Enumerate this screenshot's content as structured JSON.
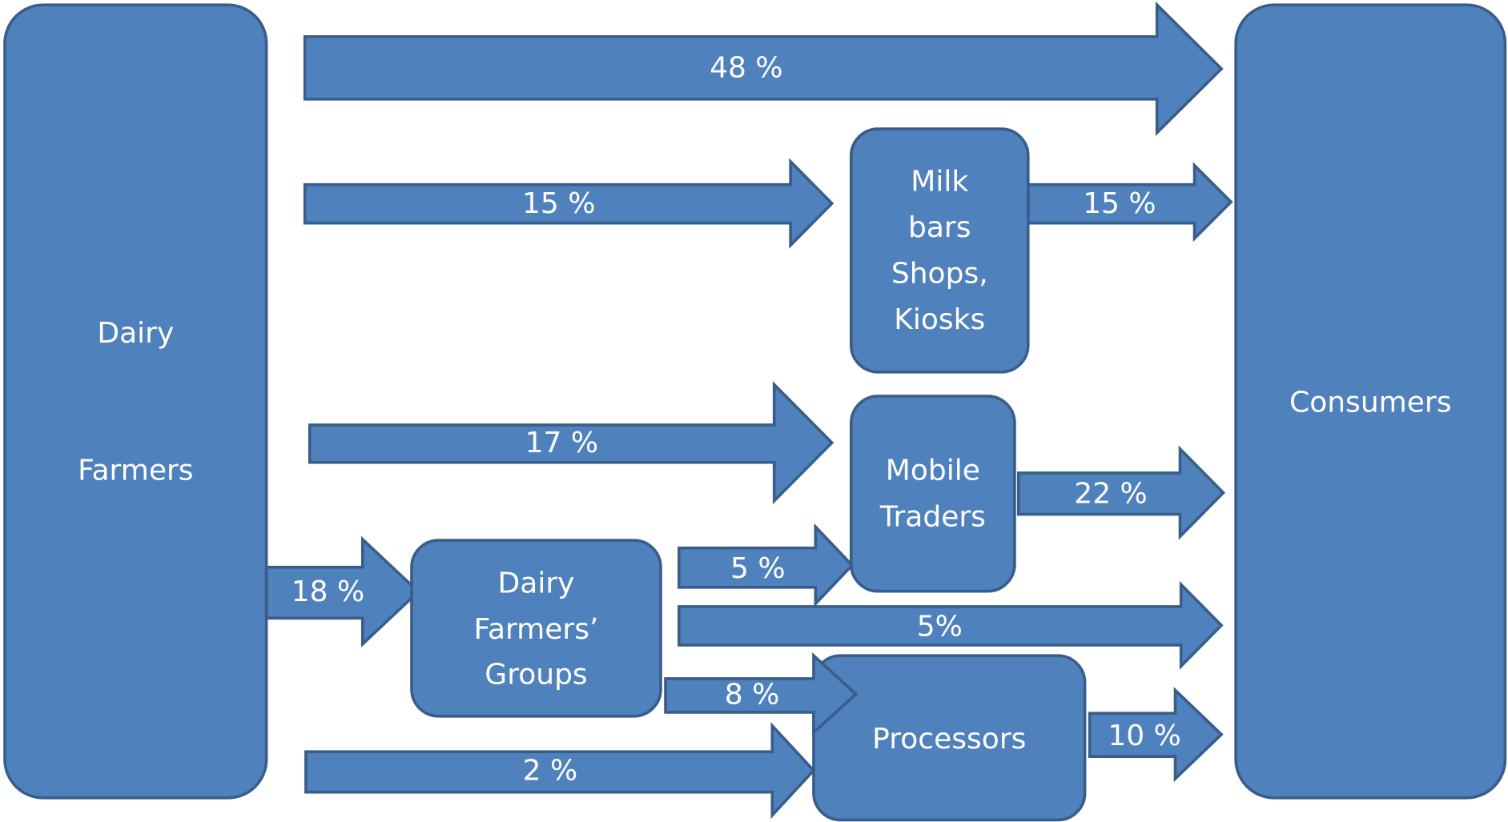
{
  "nodes": [
    {
      "label": [
        "Dairy",
        "Farmers"
      ]
    },
    {
      "label": [
        "Consumers"
      ]
    },
    {
      "label": [
        "Milk",
        "bars",
        "Shops,",
        "Kiosks"
      ]
    },
    {
      "label": [
        "Mobile",
        "Traders"
      ]
    },
    {
      "label": [
        "Dairy",
        "Farmers’",
        "Groups"
      ]
    },
    {
      "label": [
        "Processors"
      ]
    }
  ],
  "flows": [
    {
      "label": "48 %"
    },
    {
      "label": "15 %"
    },
    {
      "label": "15 %"
    },
    {
      "label": "17 %"
    },
    {
      "label": "22 %"
    },
    {
      "label": "18 %"
    },
    {
      "label": "5 %"
    },
    {
      "label": "5%"
    },
    {
      "label": "8 %"
    },
    {
      "label": "10 %"
    },
    {
      "label": "2 %"
    }
  ]
}
